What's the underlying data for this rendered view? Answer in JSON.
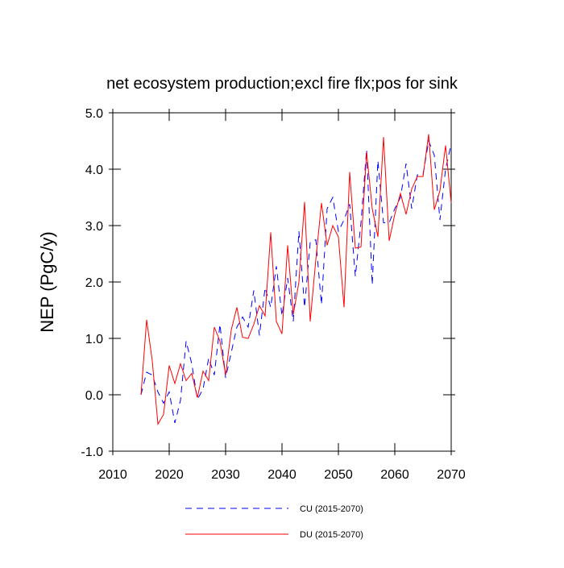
{
  "chart_data": {
    "type": "line",
    "title": "net ecosystem production;excl fire flx;pos for sink",
    "y_label": "NEP  (PgC/y)",
    "x": [
      2015,
      2016,
      2017,
      2018,
      2019,
      2020,
      2021,
      2022,
      2023,
      2024,
      2025,
      2026,
      2027,
      2028,
      2029,
      2030,
      2031,
      2032,
      2033,
      2034,
      2035,
      2036,
      2037,
      2038,
      2039,
      2040,
      2041,
      2042,
      2043,
      2044,
      2045,
      2046,
      2047,
      2048,
      2049,
      2050,
      2051,
      2052,
      2053,
      2054,
      2055,
      2056,
      2057,
      2058,
      2059,
      2060,
      2061,
      2062,
      2063,
      2064,
      2065,
      2066,
      2067,
      2068,
      2069,
      2070
    ],
    "series": [
      {
        "name": "CU (2015-2070)",
        "color": "#0000ff",
        "dashed": true,
        "values": [
          0.0,
          0.4,
          0.35,
          0.05,
          -0.15,
          0.05,
          -0.5,
          -0.1,
          0.95,
          0.55,
          -0.08,
          0.1,
          0.65,
          0.35,
          1.25,
          0.3,
          0.75,
          1.2,
          1.38,
          1.2,
          1.85,
          1.05,
          1.9,
          1.55,
          2.28,
          1.4,
          2.07,
          1.3,
          2.9,
          1.55,
          2.7,
          2.75,
          1.6,
          3.3,
          3.5,
          2.9,
          3.1,
          3.38,
          2.1,
          3.05,
          4.35,
          1.95,
          4.15,
          3.05,
          3.05,
          3.3,
          3.5,
          4.1,
          3.3,
          3.9,
          3.9,
          4.5,
          4.25,
          3.1,
          4.0,
          4.45
        ]
      },
      {
        "name": "DU (2015-2070)",
        "color": "#ff0000",
        "dashed": false,
        "values": [
          0.0,
          1.33,
          0.6,
          -0.52,
          -0.35,
          0.52,
          0.2,
          0.55,
          0.25,
          0.38,
          -0.05,
          0.42,
          0.25,
          1.2,
          0.95,
          0.35,
          1.15,
          1.55,
          1.02,
          1.0,
          1.25,
          1.58,
          1.4,
          2.88,
          1.3,
          1.08,
          2.65,
          1.42,
          2.0,
          3.42,
          1.3,
          2.4,
          3.4,
          2.65,
          3.0,
          2.8,
          1.55,
          3.95,
          2.6,
          2.62,
          4.3,
          3.3,
          2.8,
          4.57,
          2.73,
          3.2,
          3.57,
          3.2,
          3.65,
          3.87,
          3.87,
          4.62,
          3.28,
          3.62,
          4.42,
          3.4
        ]
      }
    ],
    "xlim": [
      2010,
      2070
    ],
    "xticks": [
      2010,
      2020,
      2030,
      2040,
      2050,
      2060,
      2070
    ],
    "ylim": [
      -1.0,
      5.0
    ],
    "yticks": [
      {
        "value": -1,
        "label": "-1.0"
      },
      {
        "value": 0,
        "label": "0.0"
      },
      {
        "value": 1,
        "label": "1.0"
      },
      {
        "value": 2,
        "label": "2.0"
      },
      {
        "value": 3,
        "label": "3.0"
      },
      {
        "value": 4,
        "label": "4.0"
      },
      {
        "value": 5,
        "label": "5.0"
      }
    ]
  }
}
